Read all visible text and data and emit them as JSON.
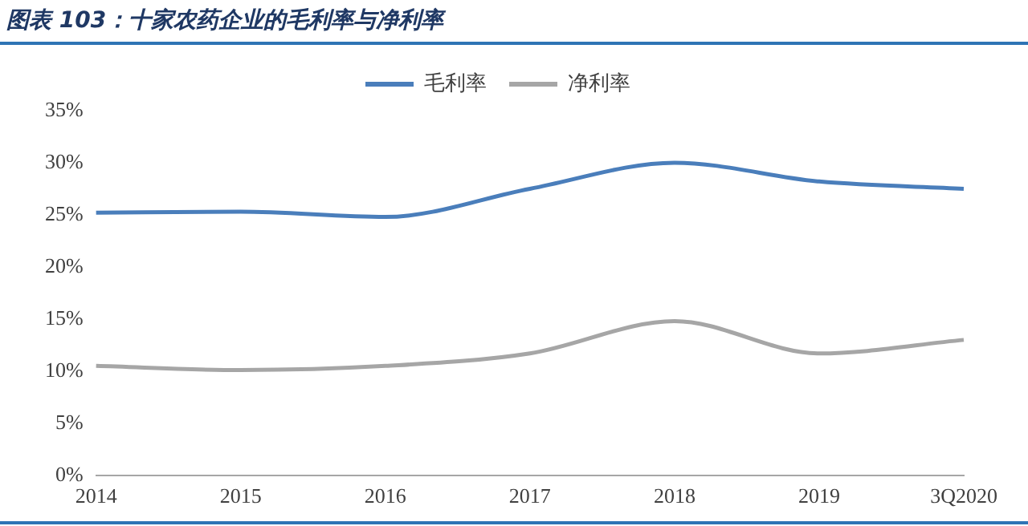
{
  "chart_data": {
    "type": "line",
    "title": "图表 103：十家农药企业的毛利率与净利率",
    "categories": [
      "2014",
      "2015",
      "2016",
      "2017",
      "2018",
      "2019",
      "3Q2020"
    ],
    "series": [
      {
        "name": "毛利率",
        "color": "#4a7ebb",
        "values": [
          25.2,
          25.3,
          24.8,
          27.5,
          30.0,
          28.2,
          27.5
        ]
      },
      {
        "name": "净利率",
        "color": "#a6a6a6",
        "values": [
          10.5,
          10.1,
          10.5,
          11.7,
          14.8,
          11.7,
          13.0
        ]
      }
    ],
    "ylim": [
      0,
      35
    ],
    "yticks": [
      {
        "value": 0,
        "label": "0%"
      },
      {
        "value": 5,
        "label": "5%"
      },
      {
        "value": 10,
        "label": "10%"
      },
      {
        "value": 15,
        "label": "15%"
      },
      {
        "value": 20,
        "label": "20%"
      },
      {
        "value": 25,
        "label": "25%"
      },
      {
        "value": 30,
        "label": "30%"
      },
      {
        "value": 35,
        "label": "35%"
      }
    ],
    "grid": false,
    "legend": "top",
    "marker": "none"
  }
}
